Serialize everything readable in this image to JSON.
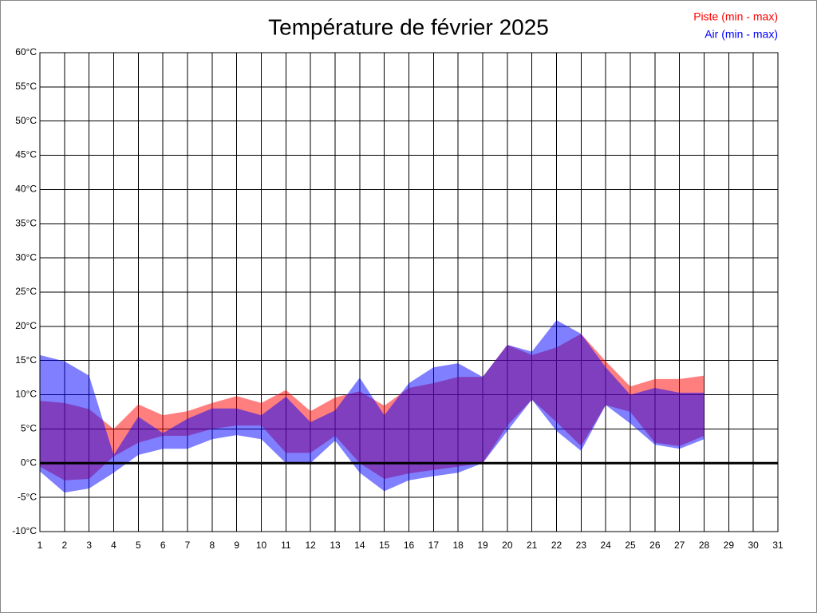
{
  "chart_data": {
    "type": "range-area",
    "title": "Température de février 2025",
    "x": [
      1,
      2,
      3,
      4,
      5,
      6,
      7,
      8,
      9,
      10,
      11,
      12,
      13,
      14,
      15,
      16,
      17,
      18,
      19,
      20,
      21,
      22,
      23,
      24,
      25,
      26,
      27,
      28
    ],
    "series": [
      {
        "name": "Piste (min - max)",
        "color": "#ff0000",
        "min": [
          -0.5,
          -2.5,
          -2.3,
          1,
          3,
          4,
          4,
          5,
          5.5,
          5.5,
          1.5,
          1.5,
          4,
          0,
          -2.3,
          -1.5,
          -1,
          -0.5,
          0,
          5.5,
          9.3,
          6,
          2.5,
          8.5,
          7.5,
          3,
          2.5,
          4
        ],
        "max": [
          9.1,
          8.8,
          7.9,
          5,
          8.6,
          7,
          7.6,
          8.8,
          9.8,
          8.8,
          10.7,
          7.6,
          9.6,
          10.5,
          8.4,
          11,
          11.7,
          12.6,
          12.6,
          17.3,
          15.8,
          16.9,
          18.9,
          14.9,
          11.2,
          12.3,
          12.3,
          12.8
        ]
      },
      {
        "name": "Air (min - max)",
        "color": "#0000ff",
        "min": [
          -1.2,
          -4.3,
          -3.7,
          -1.4,
          1.2,
          2.1,
          2.1,
          3.5,
          4.1,
          3.5,
          0,
          0,
          3.3,
          -1.4,
          -4.1,
          -2.5,
          -1.9,
          -1.4,
          0,
          4.7,
          9.3,
          4.7,
          1.8,
          8.5,
          5.8,
          2.7,
          2.1,
          3.5
        ],
        "max": [
          15.8,
          14.9,
          12.8,
          1.2,
          6.8,
          4.4,
          6.5,
          8,
          8,
          7,
          9.7,
          6,
          7.7,
          12.5,
          7,
          11.7,
          14,
          14.6,
          12.6,
          17.3,
          16.3,
          20.9,
          18.9,
          14,
          10,
          11,
          10.3,
          10.3
        ]
      }
    ],
    "xlim": [
      1,
      31
    ],
    "xticks": [
      1,
      2,
      3,
      4,
      5,
      6,
      7,
      8,
      9,
      10,
      11,
      12,
      13,
      14,
      15,
      16,
      17,
      18,
      19,
      20,
      21,
      22,
      23,
      24,
      25,
      26,
      27,
      28,
      29,
      30,
      31
    ],
    "ylim": [
      -10,
      60
    ],
    "yticks": [
      {
        "value": -10,
        "label": "-10°C"
      },
      {
        "value": -5,
        "label": "-5°C"
      },
      {
        "value": 0,
        "label": "0°C"
      },
      {
        "value": 5,
        "label": "5°C"
      },
      {
        "value": 10,
        "label": "10°C"
      },
      {
        "value": 15,
        "label": "15°C"
      },
      {
        "value": 20,
        "label": "20°C"
      },
      {
        "value": 25,
        "label": "25°C"
      },
      {
        "value": 30,
        "label": "30°C"
      },
      {
        "value": 35,
        "label": "35°C"
      },
      {
        "value": 40,
        "label": "40°C"
      },
      {
        "value": 45,
        "label": "45°C"
      },
      {
        "value": 50,
        "label": "50°C"
      },
      {
        "value": 55,
        "label": "55°C"
      },
      {
        "value": 60,
        "label": "60°C"
      }
    ],
    "grid": true,
    "zero_line": true,
    "legend": "top-right"
  }
}
